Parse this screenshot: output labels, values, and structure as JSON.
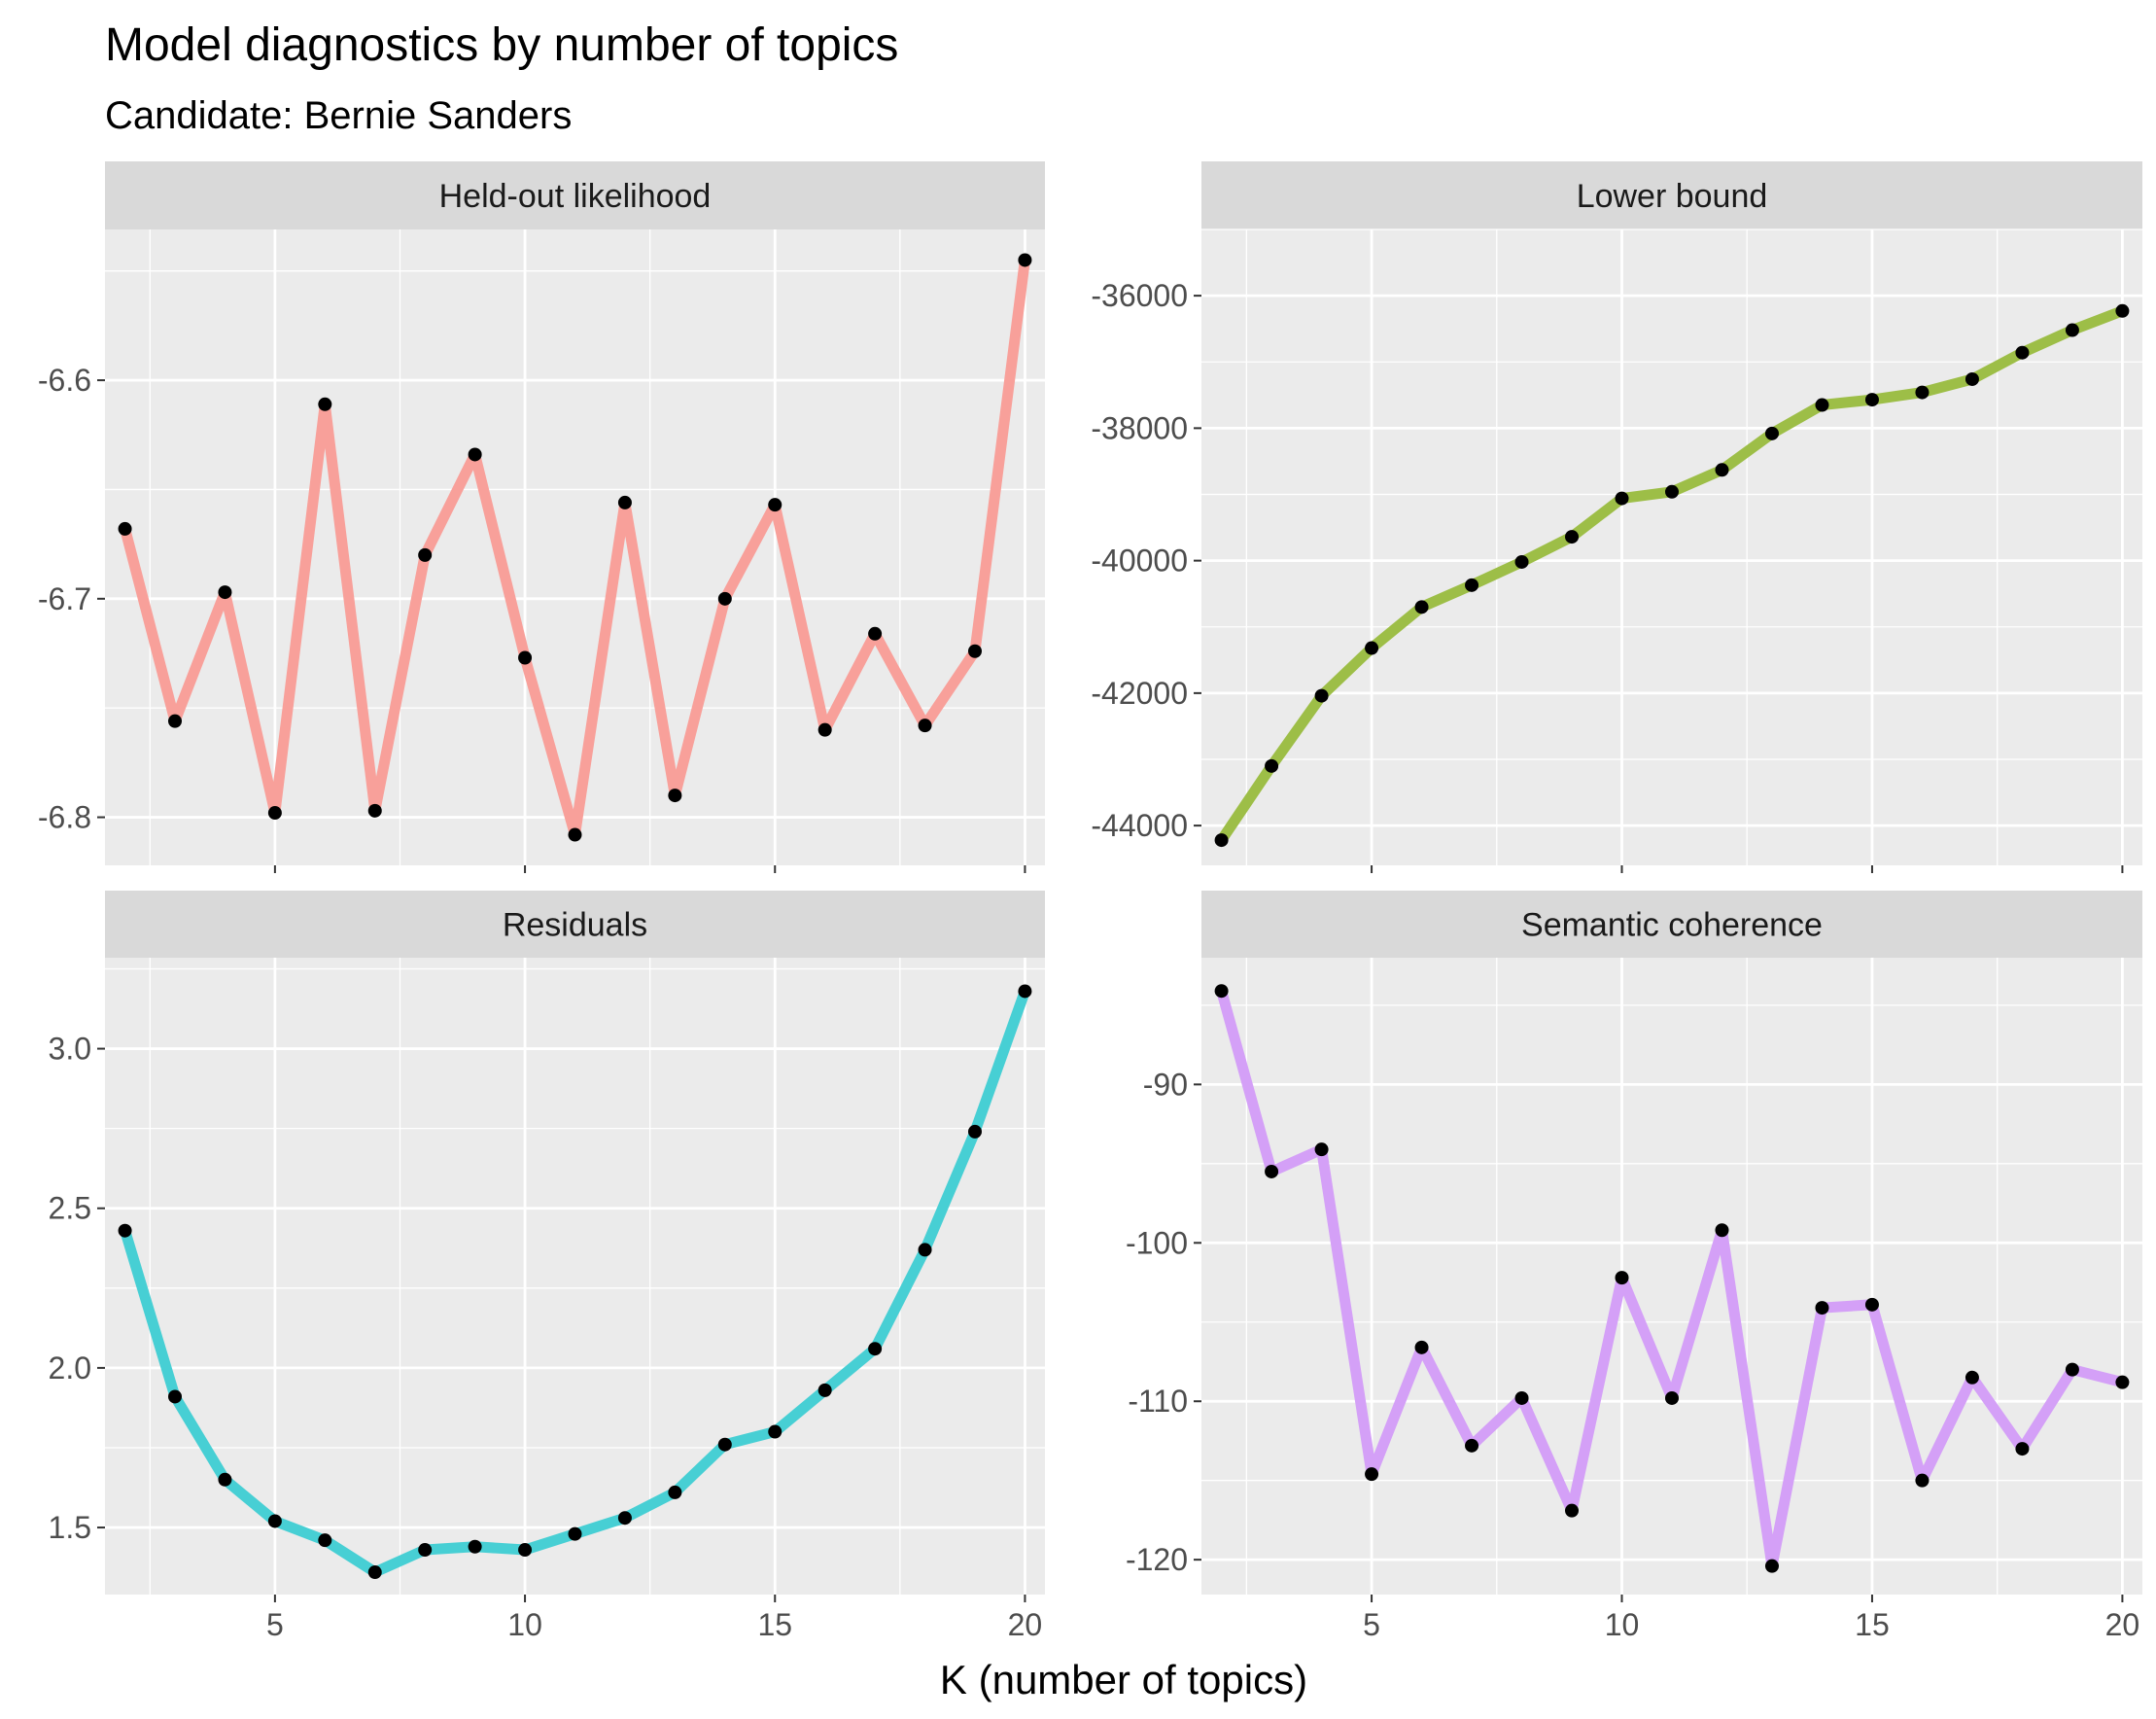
{
  "title": "Model diagnostics by number of topics",
  "subtitle": "Candidate: Bernie Sanders",
  "xlabel": "K (number of topics)",
  "chart_data": [
    {
      "type": "line",
      "facet": "Held-out likelihood",
      "color": "#F8A09A",
      "x": [
        2,
        3,
        4,
        5,
        6,
        7,
        8,
        9,
        10,
        11,
        12,
        13,
        14,
        15,
        16,
        17,
        18,
        19,
        20
      ],
      "y": [
        -6.668,
        -6.756,
        -6.697,
        -6.798,
        -6.611,
        -6.797,
        -6.68,
        -6.634,
        -6.727,
        -6.808,
        -6.656,
        -6.79,
        -6.7,
        -6.657,
        -6.76,
        -6.716,
        -6.758,
        -6.724,
        -6.545
      ],
      "xlim": [
        1.6,
        20.4
      ],
      "ylim": [
        -6.822,
        -6.531
      ],
      "xticks": [
        5,
        10,
        15,
        20
      ],
      "yticks": [
        -6.6,
        -6.7,
        -6.8
      ],
      "ytick_labels": [
        "-6.6",
        "-6.7",
        "-6.8"
      ]
    },
    {
      "type": "line",
      "facet": "Lower bound",
      "color": "#9DBE47",
      "x": [
        2,
        3,
        4,
        5,
        6,
        7,
        8,
        9,
        10,
        11,
        12,
        13,
        14,
        15,
        16,
        17,
        18,
        19,
        20
      ],
      "y": [
        -44220,
        -43100,
        -42040,
        -41320,
        -40700,
        -40370,
        -40020,
        -39640,
        -39060,
        -38960,
        -38630,
        -38080,
        -37650,
        -37570,
        -37460,
        -37260,
        -36860,
        -36520,
        -36230
      ],
      "xlim": [
        1.6,
        20.4
      ],
      "ylim": [
        -44600,
        -35000
      ],
      "xticks": [
        5,
        10,
        15,
        20
      ],
      "yticks": [
        -36000,
        -38000,
        -40000,
        -42000,
        -44000
      ],
      "ytick_labels": [
        "-36000",
        "-38000",
        "-40000",
        "-42000",
        "-44000"
      ]
    },
    {
      "type": "line",
      "facet": "Residuals",
      "color": "#47CFD4",
      "x": [
        2,
        3,
        4,
        5,
        6,
        7,
        8,
        9,
        10,
        11,
        12,
        13,
        14,
        15,
        16,
        17,
        18,
        19,
        20
      ],
      "y": [
        2.43,
        1.91,
        1.65,
        1.52,
        1.46,
        1.36,
        1.43,
        1.44,
        1.43,
        1.48,
        1.53,
        1.61,
        1.76,
        1.8,
        1.93,
        2.06,
        2.37,
        2.74,
        3.18
      ],
      "xlim": [
        1.6,
        20.4
      ],
      "ylim": [
        1.29,
        3.285
      ],
      "xticks": [
        5,
        10,
        15,
        20
      ],
      "yticks": [
        1.5,
        2.0,
        2.5,
        3.0
      ],
      "ytick_labels": [
        "1.5",
        "2.0",
        "2.5",
        "3.0"
      ]
    },
    {
      "type": "line",
      "facet": "Semantic coherence",
      "color": "#D4A0F7",
      "x": [
        2,
        3,
        4,
        5,
        6,
        7,
        8,
        9,
        10,
        11,
        12,
        13,
        14,
        15,
        16,
        17,
        18,
        19,
        20
      ],
      "y": [
        -84.1,
        -95.5,
        -94.1,
        -114.6,
        -106.6,
        -112.8,
        -109.8,
        -116.9,
        -102.2,
        -109.8,
        -99.2,
        -120.4,
        -104.1,
        -103.9,
        -115.0,
        -108.5,
        -113.0,
        -108.0,
        -108.8
      ],
      "xlim": [
        1.6,
        20.4
      ],
      "ylim": [
        -122.2,
        -82.0
      ],
      "xticks": [
        5,
        10,
        15,
        20
      ],
      "yticks": [
        -90,
        -100,
        -110,
        -120
      ],
      "ytick_labels": [
        "-90",
        "-100",
        "-110",
        "-120"
      ]
    }
  ]
}
